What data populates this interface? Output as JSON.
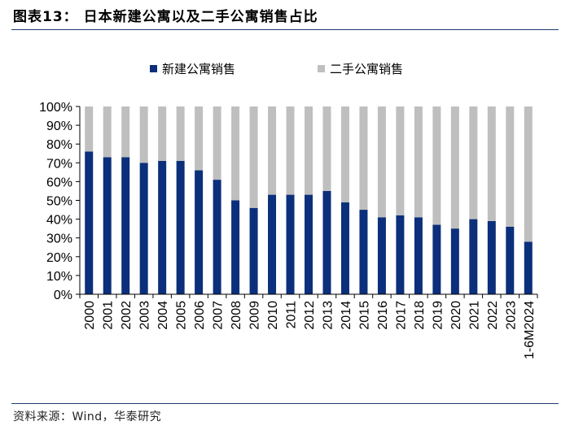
{
  "header": {
    "title": "图表13： 日本新建公寓以及二手公寓销售占比"
  },
  "footer": {
    "source": "资料来源：Wind，华泰研究"
  },
  "chart_data": {
    "type": "bar",
    "stacked": true,
    "categories": [
      "2000",
      "2001",
      "2002",
      "2003",
      "2004",
      "2005",
      "2006",
      "2007",
      "2008",
      "2009",
      "2010",
      "2011",
      "2012",
      "2013",
      "2014",
      "2015",
      "2016",
      "2017",
      "2018",
      "2019",
      "2020",
      "2021",
      "2022",
      "2023",
      "1-6M2024"
    ],
    "series": [
      {
        "name": "新建公寓销售",
        "color": "#0b2f7a",
        "values": [
          76,
          73,
          73,
          70,
          71,
          71,
          66,
          61,
          50,
          46,
          53,
          53,
          53,
          55,
          49,
          45,
          41,
          42,
          41,
          37,
          35,
          40,
          39,
          36,
          28
        ]
      },
      {
        "name": "二手公寓销售",
        "color": "#bfbfbf",
        "values": [
          24,
          27,
          27,
          30,
          29,
          29,
          34,
          39,
          50,
          54,
          47,
          47,
          47,
          45,
          51,
          55,
          59,
          58,
          59,
          63,
          65,
          60,
          61,
          64,
          72
        ]
      }
    ],
    "y_ticks": [
      "0%",
      "10%",
      "20%",
      "30%",
      "40%",
      "50%",
      "60%",
      "70%",
      "80%",
      "90%",
      "100%"
    ],
    "ylim": [
      0,
      100
    ],
    "legend_position": "top",
    "grid": false
  }
}
